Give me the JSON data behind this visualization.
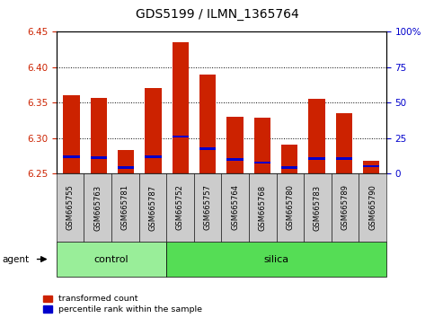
{
  "title": "GDS5199 / ILMN_1365764",
  "samples": [
    "GSM665755",
    "GSM665763",
    "GSM665781",
    "GSM665787",
    "GSM665752",
    "GSM665757",
    "GSM665764",
    "GSM665768",
    "GSM665780",
    "GSM665783",
    "GSM665789",
    "GSM665790"
  ],
  "groups": [
    "control",
    "control",
    "control",
    "control",
    "silica",
    "silica",
    "silica",
    "silica",
    "silica",
    "silica",
    "silica",
    "silica"
  ],
  "red_values": [
    6.36,
    6.356,
    6.283,
    6.37,
    6.435,
    6.39,
    6.33,
    6.328,
    6.29,
    6.355,
    6.335,
    6.268
  ],
  "blue_positions": [
    6.273,
    6.272,
    6.258,
    6.273,
    6.302,
    6.285,
    6.27,
    6.265,
    6.258,
    6.271,
    6.271,
    6.26
  ],
  "y_min": 6.25,
  "y_max": 6.45,
  "y_ticks_left": [
    6.25,
    6.3,
    6.35,
    6.4,
    6.45
  ],
  "y_ticks_right": [
    0,
    25,
    50,
    75,
    100
  ],
  "bar_color": "#cc2200",
  "blue_color": "#0000cc",
  "bar_width": 0.6,
  "bg_color": "#ffffff",
  "control_bg": "#99ee99",
  "silica_bg": "#55dd55",
  "tick_label_bg": "#cccccc",
  "legend_red_label": "transformed count",
  "legend_blue_label": "percentile rank within the sample",
  "agent_label": "agent",
  "control_label": "control",
  "silica_label": "silica",
  "title_fontsize": 10,
  "tick_fontsize": 7.5,
  "label_fontsize": 8,
  "n_control": 4,
  "n_silica": 8
}
